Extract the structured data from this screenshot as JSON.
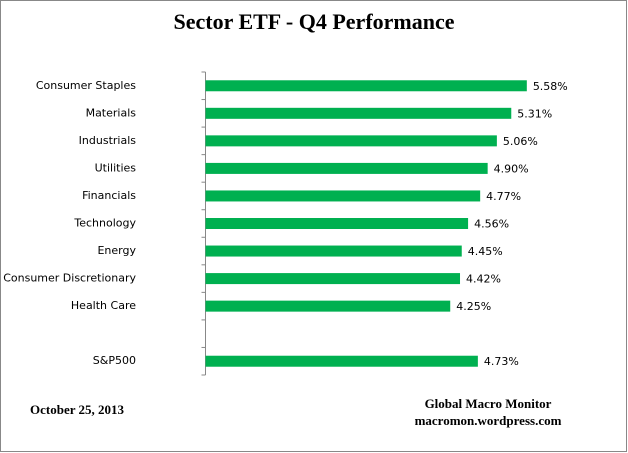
{
  "chart_data": {
    "type": "bar",
    "orientation": "horizontal",
    "title": "Sector ETF - Q4  Performance",
    "categories": [
      "Consumer Staples",
      "Materials",
      "Industrials",
      "Utilities",
      "Financials",
      "Technology",
      "Energy",
      "Consumer Discretionary",
      "Health Care",
      null,
      "S&P500"
    ],
    "values": [
      5.58,
      5.31,
      5.06,
      4.9,
      4.77,
      4.56,
      4.45,
      4.42,
      4.25,
      null,
      4.73
    ],
    "value_labels": [
      "5.58%",
      "5.31%",
      "5.06%",
      "4.90%",
      "4.77%",
      "4.56%",
      "4.45%",
      "4.42%",
      "4.25%",
      null,
      "4.73%"
    ],
    "color": "#00b050",
    "xlim": [
      0,
      6
    ],
    "date": "October 25, 2013",
    "source": [
      "Global Macro Monitor",
      "macromon.wordpress.com"
    ]
  }
}
